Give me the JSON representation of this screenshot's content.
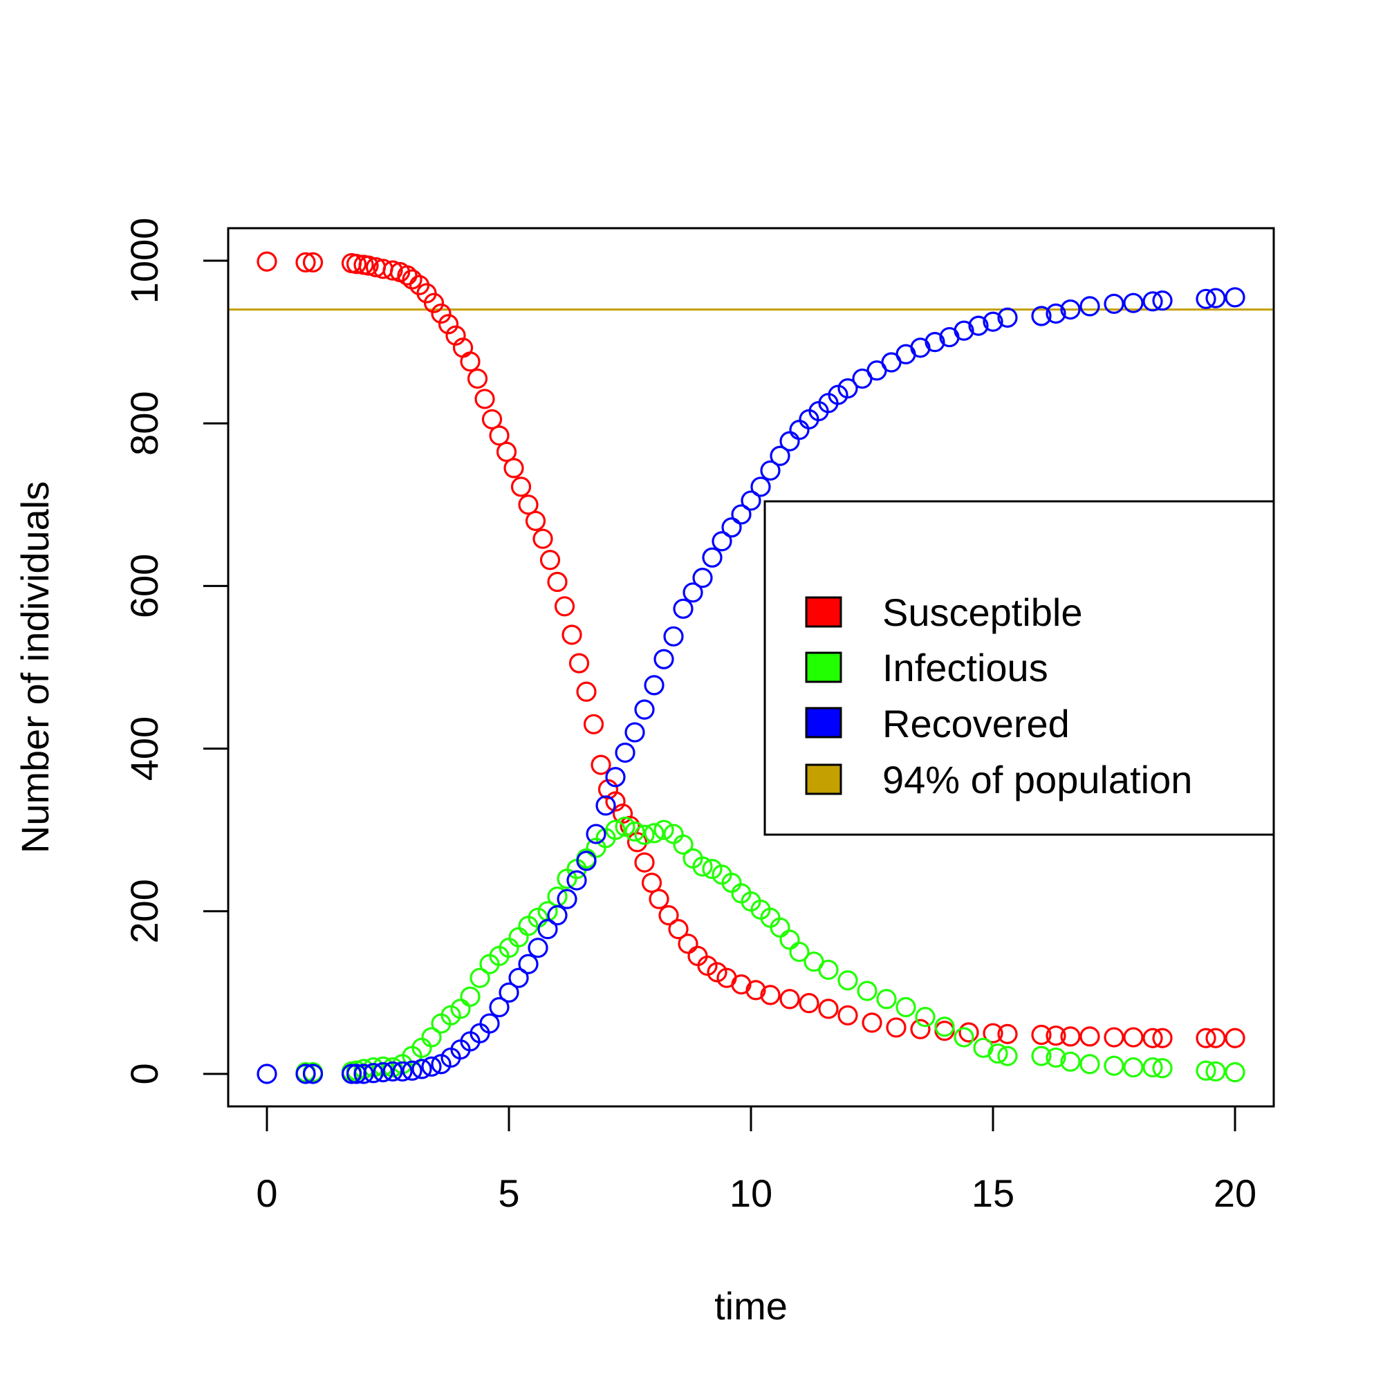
{
  "chart_data": {
    "type": "scatter",
    "title": "",
    "xlabel": "time",
    "ylabel": "Number of individuals",
    "xlim": [
      -0.8,
      20.8
    ],
    "ylim": [
      -40,
      1040
    ],
    "xticks": [
      0,
      5,
      10,
      15,
      20
    ],
    "yticks": [
      0,
      200,
      400,
      600,
      800,
      1000
    ],
    "grid": false,
    "legend_position": "right",
    "series": [
      {
        "name": "Susceptible",
        "color": "#ff0000",
        "points": [
          [
            0,
            999
          ],
          [
            0.8,
            998
          ],
          [
            0.95,
            998
          ],
          [
            1.75,
            997
          ],
          [
            1.85,
            996
          ],
          [
            2.0,
            995
          ],
          [
            2.1,
            994
          ],
          [
            2.25,
            992
          ],
          [
            2.4,
            990
          ],
          [
            2.6,
            988
          ],
          [
            2.75,
            986
          ],
          [
            2.9,
            982
          ],
          [
            3.0,
            977
          ],
          [
            3.15,
            970
          ],
          [
            3.3,
            960
          ],
          [
            3.45,
            948
          ],
          [
            3.6,
            935
          ],
          [
            3.75,
            922
          ],
          [
            3.9,
            908
          ],
          [
            4.05,
            893
          ],
          [
            4.2,
            876
          ],
          [
            4.35,
            855
          ],
          [
            4.5,
            830
          ],
          [
            4.65,
            805
          ],
          [
            4.8,
            785
          ],
          [
            4.95,
            765
          ],
          [
            5.1,
            745
          ],
          [
            5.25,
            722
          ],
          [
            5.4,
            700
          ],
          [
            5.55,
            680
          ],
          [
            5.7,
            658
          ],
          [
            5.85,
            632
          ],
          [
            6.0,
            605
          ],
          [
            6.15,
            575
          ],
          [
            6.3,
            540
          ],
          [
            6.45,
            505
          ],
          [
            6.6,
            470
          ],
          [
            6.75,
            430
          ],
          [
            6.9,
            380
          ],
          [
            7.05,
            350
          ],
          [
            7.2,
            335
          ],
          [
            7.35,
            320
          ],
          [
            7.5,
            305
          ],
          [
            7.65,
            285
          ],
          [
            7.8,
            260
          ],
          [
            7.95,
            235
          ],
          [
            8.1,
            215
          ],
          [
            8.3,
            195
          ],
          [
            8.5,
            178
          ],
          [
            8.7,
            160
          ],
          [
            8.9,
            145
          ],
          [
            9.1,
            133
          ],
          [
            9.3,
            125
          ],
          [
            9.5,
            118
          ],
          [
            9.8,
            110
          ],
          [
            10.1,
            103
          ],
          [
            10.4,
            97
          ],
          [
            10.8,
            92
          ],
          [
            11.2,
            87
          ],
          [
            11.6,
            80
          ],
          [
            12.0,
            72
          ],
          [
            12.5,
            63
          ],
          [
            13.0,
            57
          ],
          [
            13.5,
            55
          ],
          [
            14.0,
            53
          ],
          [
            14.5,
            51
          ],
          [
            15.0,
            50
          ],
          [
            15.3,
            49
          ],
          [
            16.0,
            48
          ],
          [
            16.3,
            47
          ],
          [
            16.6,
            46
          ],
          [
            17.0,
            46
          ],
          [
            17.5,
            45
          ],
          [
            17.9,
            45
          ],
          [
            18.3,
            44
          ],
          [
            18.5,
            44
          ],
          [
            19.4,
            44
          ],
          [
            19.6,
            44
          ],
          [
            20.0,
            44
          ]
        ]
      },
      {
        "name": "Infectious",
        "color": "#22ff00",
        "points": [
          [
            0.8,
            2
          ],
          [
            0.95,
            2
          ],
          [
            1.75,
            3
          ],
          [
            1.85,
            4
          ],
          [
            2.0,
            6
          ],
          [
            2.2,
            8
          ],
          [
            2.4,
            9
          ],
          [
            2.6,
            8
          ],
          [
            2.8,
            12
          ],
          [
            3.0,
            22
          ],
          [
            3.2,
            32
          ],
          [
            3.4,
            45
          ],
          [
            3.6,
            62
          ],
          [
            3.8,
            72
          ],
          [
            4.0,
            80
          ],
          [
            4.2,
            95
          ],
          [
            4.4,
            118
          ],
          [
            4.6,
            135
          ],
          [
            4.8,
            145
          ],
          [
            5.0,
            155
          ],
          [
            5.2,
            168
          ],
          [
            5.4,
            182
          ],
          [
            5.6,
            192
          ],
          [
            5.8,
            200
          ],
          [
            6.0,
            218
          ],
          [
            6.2,
            240
          ],
          [
            6.4,
            252
          ],
          [
            6.6,
            265
          ],
          [
            6.8,
            278
          ],
          [
            7.0,
            290
          ],
          [
            7.2,
            300
          ],
          [
            7.4,
            304
          ],
          [
            7.6,
            298
          ],
          [
            7.8,
            294
          ],
          [
            8.0,
            296
          ],
          [
            8.2,
            300
          ],
          [
            8.4,
            295
          ],
          [
            8.6,
            282
          ],
          [
            8.8,
            265
          ],
          [
            9.0,
            255
          ],
          [
            9.2,
            252
          ],
          [
            9.4,
            245
          ],
          [
            9.6,
            235
          ],
          [
            9.8,
            222
          ],
          [
            10.0,
            212
          ],
          [
            10.2,
            202
          ],
          [
            10.4,
            192
          ],
          [
            10.6,
            180
          ],
          [
            10.8,
            165
          ],
          [
            11.0,
            150
          ],
          [
            11.3,
            138
          ],
          [
            11.6,
            128
          ],
          [
            12.0,
            115
          ],
          [
            12.4,
            102
          ],
          [
            12.8,
            92
          ],
          [
            13.2,
            82
          ],
          [
            13.6,
            70
          ],
          [
            14.0,
            58
          ],
          [
            14.4,
            45
          ],
          [
            14.8,
            32
          ],
          [
            15.1,
            25
          ],
          [
            15.3,
            22
          ],
          [
            16.0,
            22
          ],
          [
            16.3,
            20
          ],
          [
            16.6,
            15
          ],
          [
            17.0,
            12
          ],
          [
            17.5,
            10
          ],
          [
            17.9,
            8
          ],
          [
            18.3,
            8
          ],
          [
            18.5,
            7
          ],
          [
            19.4,
            4
          ],
          [
            19.6,
            3
          ],
          [
            20.0,
            2
          ]
        ]
      },
      {
        "name": "Recovered",
        "color": "#0000ff",
        "points": [
          [
            0,
            0
          ],
          [
            0.8,
            0
          ],
          [
            0.95,
            0
          ],
          [
            1.75,
            0
          ],
          [
            1.85,
            0
          ],
          [
            2.0,
            0
          ],
          [
            2.2,
            1
          ],
          [
            2.4,
            2
          ],
          [
            2.6,
            3
          ],
          [
            2.8,
            3
          ],
          [
            3.0,
            4
          ],
          [
            3.2,
            6
          ],
          [
            3.4,
            9
          ],
          [
            3.6,
            12
          ],
          [
            3.8,
            20
          ],
          [
            4.0,
            30
          ],
          [
            4.2,
            40
          ],
          [
            4.4,
            50
          ],
          [
            4.6,
            62
          ],
          [
            4.8,
            82
          ],
          [
            5.0,
            100
          ],
          [
            5.2,
            118
          ],
          [
            5.4,
            135
          ],
          [
            5.6,
            155
          ],
          [
            5.8,
            178
          ],
          [
            6.0,
            195
          ],
          [
            6.2,
            215
          ],
          [
            6.4,
            238
          ],
          [
            6.6,
            262
          ],
          [
            6.8,
            295
          ],
          [
            7.0,
            330
          ],
          [
            7.2,
            365
          ],
          [
            7.4,
            395
          ],
          [
            7.6,
            420
          ],
          [
            7.8,
            448
          ],
          [
            8.0,
            478
          ],
          [
            8.2,
            510
          ],
          [
            8.4,
            538
          ],
          [
            8.6,
            572
          ],
          [
            8.8,
            592
          ],
          [
            9.0,
            610
          ],
          [
            9.2,
            635
          ],
          [
            9.4,
            655
          ],
          [
            9.6,
            672
          ],
          [
            9.8,
            688
          ],
          [
            10.0,
            705
          ],
          [
            10.2,
            722
          ],
          [
            10.4,
            742
          ],
          [
            10.6,
            760
          ],
          [
            10.8,
            778
          ],
          [
            11.0,
            792
          ],
          [
            11.2,
            805
          ],
          [
            11.4,
            815
          ],
          [
            11.6,
            825
          ],
          [
            11.8,
            835
          ],
          [
            12.0,
            843
          ],
          [
            12.3,
            855
          ],
          [
            12.6,
            865
          ],
          [
            12.9,
            875
          ],
          [
            13.2,
            885
          ],
          [
            13.5,
            893
          ],
          [
            13.8,
            900
          ],
          [
            14.1,
            906
          ],
          [
            14.4,
            914
          ],
          [
            14.7,
            920
          ],
          [
            15.0,
            925
          ],
          [
            15.3,
            930
          ],
          [
            16.0,
            932
          ],
          [
            16.3,
            935
          ],
          [
            16.6,
            940
          ],
          [
            17.0,
            944
          ],
          [
            17.5,
            947
          ],
          [
            17.9,
            948
          ],
          [
            18.3,
            950
          ],
          [
            18.5,
            951
          ],
          [
            19.4,
            953
          ],
          [
            19.6,
            954
          ],
          [
            20.0,
            955
          ]
        ]
      }
    ],
    "reference_lines": [
      {
        "name": "94% of population",
        "y": 940,
        "color": "#c4a000"
      }
    ]
  },
  "legend": {
    "items": [
      {
        "label": "Susceptible",
        "color": "#ff0000"
      },
      {
        "label": "Infectious",
        "color": "#22ff00"
      },
      {
        "label": "Recovered",
        "color": "#0000ff"
      },
      {
        "label": "94% of population",
        "color": "#c4a000"
      }
    ]
  }
}
